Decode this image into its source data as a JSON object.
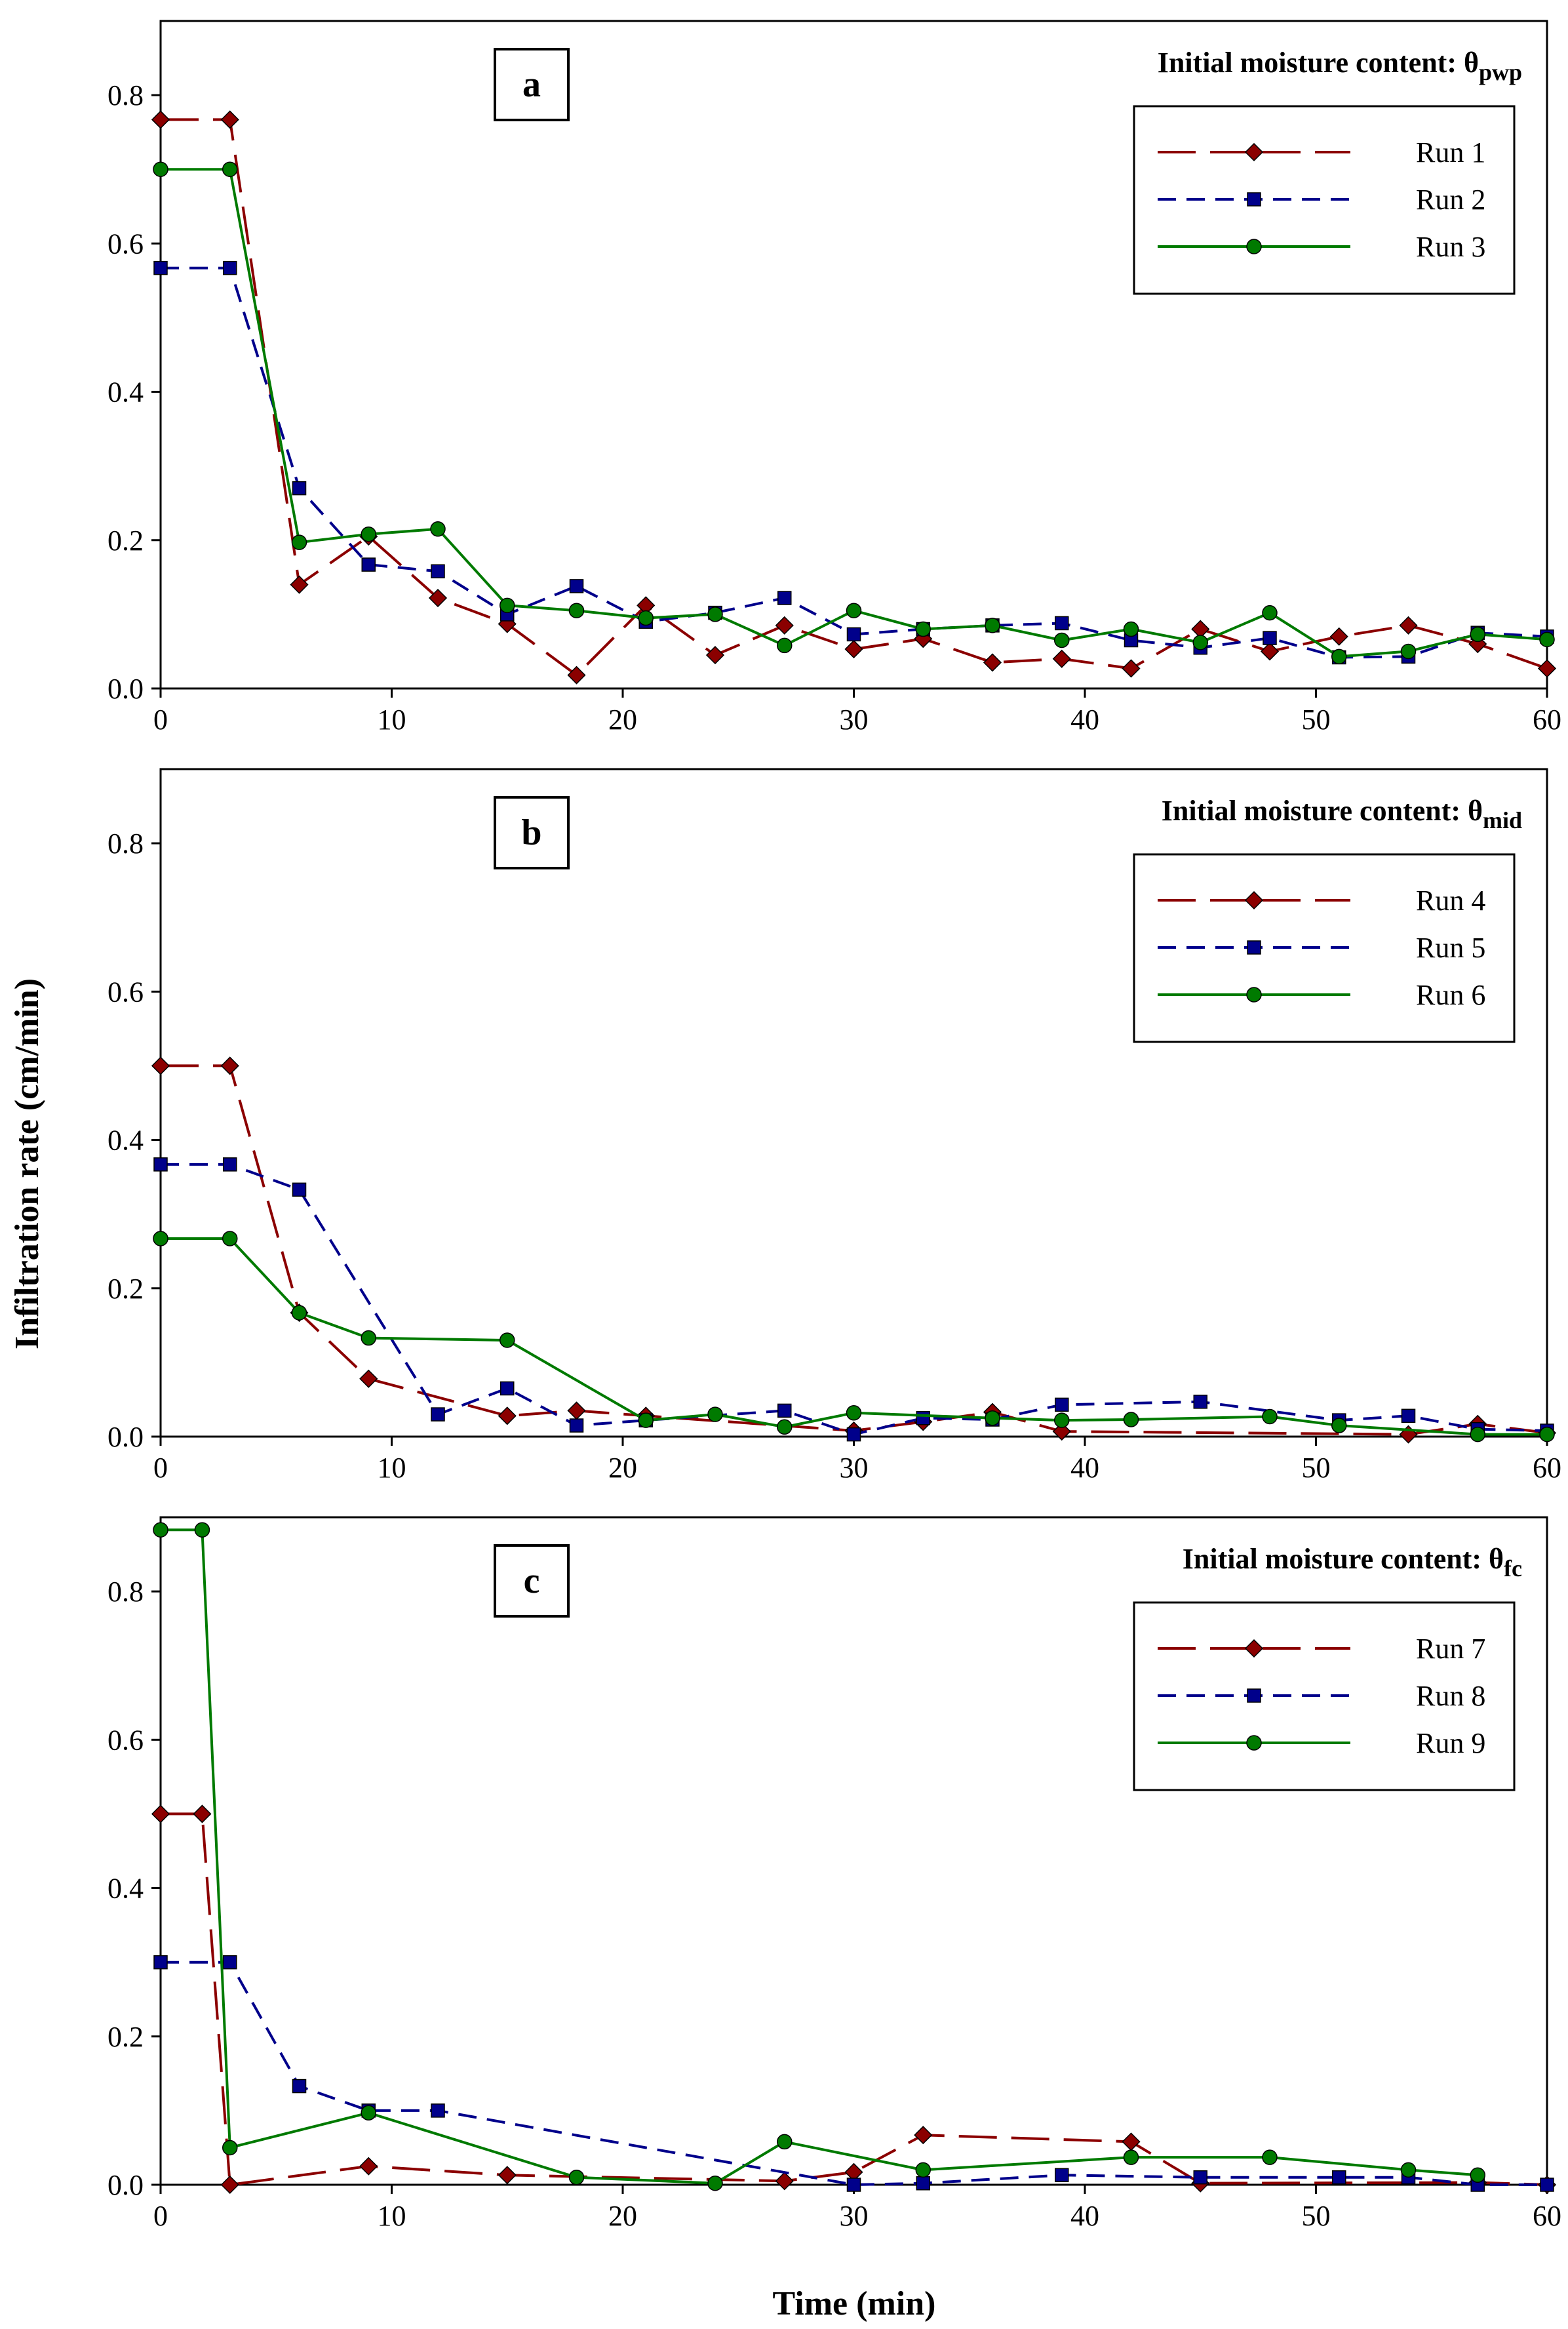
{
  "figure": {
    "ylabel": "Infiltration rate (cm/min)",
    "xlabel": "Time (min)"
  },
  "chart_data": [
    {
      "type": "line",
      "panel_label": "a",
      "annotation": {
        "text": "Initial moisture content: θ",
        "subscript": "pwp"
      },
      "xlim": [
        0,
        60
      ],
      "ylim": [
        0,
        0.9
      ],
      "xticks": [
        0,
        10,
        20,
        30,
        40,
        50,
        60
      ],
      "yticks": [
        0.0,
        0.2,
        0.4,
        0.6,
        0.8
      ],
      "legend_position": "top-right",
      "series": [
        {
          "name": "Run 1",
          "color": "#8b0000",
          "dash": "long-dash",
          "marker": "diamond",
          "x": [
            0,
            3,
            6,
            9,
            12,
            15,
            18,
            21,
            24,
            27,
            30,
            33,
            36,
            39,
            42,
            45,
            48,
            51,
            54,
            57,
            60
          ],
          "y": [
            0.767,
            0.767,
            0.14,
            0.205,
            0.122,
            0.087,
            0.018,
            0.112,
            0.045,
            0.085,
            0.053,
            0.067,
            0.035,
            0.04,
            0.027,
            0.08,
            0.05,
            0.07,
            0.085,
            0.06,
            0.027
          ]
        },
        {
          "name": "Run 2",
          "color": "#00008b",
          "dash": "dash",
          "marker": "square",
          "x": [
            0,
            3,
            6,
            9,
            12,
            15,
            18,
            21,
            24,
            27,
            30,
            33,
            36,
            39,
            42,
            45,
            48,
            51,
            54,
            57,
            60
          ],
          "y": [
            0.567,
            0.567,
            0.27,
            0.167,
            0.158,
            0.1,
            0.138,
            0.09,
            0.102,
            0.122,
            0.073,
            0.08,
            0.085,
            0.088,
            0.065,
            0.055,
            0.068,
            0.042,
            0.043,
            0.075,
            0.07
          ]
        },
        {
          "name": "Run 3",
          "color": "#007a00",
          "dash": "solid",
          "marker": "circle",
          "x": [
            0,
            3,
            6,
            9,
            12,
            15,
            18,
            21,
            24,
            27,
            30,
            33,
            36,
            39,
            42,
            45,
            48,
            51,
            54,
            57,
            60
          ],
          "y": [
            0.7,
            0.7,
            0.197,
            0.208,
            0.215,
            0.112,
            0.105,
            0.095,
            0.1,
            0.058,
            0.105,
            0.08,
            0.085,
            0.065,
            0.08,
            0.062,
            0.102,
            0.043,
            0.05,
            0.073,
            0.066
          ]
        }
      ]
    },
    {
      "type": "line",
      "panel_label": "b",
      "annotation": {
        "text": "Initial moisture content: θ",
        "subscript": "mid"
      },
      "xlim": [
        0,
        60
      ],
      "ylim": [
        0,
        0.9
      ],
      "xticks": [
        0,
        10,
        20,
        30,
        40,
        50,
        60
      ],
      "yticks": [
        0.0,
        0.2,
        0.4,
        0.6,
        0.8
      ],
      "legend_position": "top-right",
      "series": [
        {
          "name": "Run 4",
          "color": "#8b0000",
          "dash": "long-dash",
          "marker": "diamond",
          "x": [
            0,
            3,
            6,
            9,
            15,
            18,
            21,
            30,
            33,
            36,
            39,
            54,
            57,
            60
          ],
          "y": [
            0.5,
            0.5,
            0.167,
            0.078,
            0.028,
            0.035,
            0.028,
            0.008,
            0.02,
            0.033,
            0.007,
            0.003,
            0.017,
            0.005
          ]
        },
        {
          "name": "Run 5",
          "color": "#00008b",
          "dash": "dash",
          "marker": "square",
          "x": [
            0,
            3,
            6,
            12,
            15,
            18,
            21,
            27,
            30,
            33,
            36,
            39,
            45,
            51,
            54,
            57,
            60
          ],
          "y": [
            0.367,
            0.367,
            0.333,
            0.03,
            0.065,
            0.015,
            0.022,
            0.035,
            0.003,
            0.025,
            0.023,
            0.043,
            0.047,
            0.022,
            0.028,
            0.01,
            0.008
          ]
        },
        {
          "name": "Run 6",
          "color": "#007a00",
          "dash": "solid",
          "marker": "circle",
          "x": [
            0,
            3,
            6,
            9,
            15,
            21,
            24,
            27,
            30,
            36,
            39,
            42,
            48,
            51,
            57,
            60
          ],
          "y": [
            0.267,
            0.267,
            0.167,
            0.133,
            0.13,
            0.022,
            0.03,
            0.013,
            0.032,
            0.025,
            0.022,
            0.023,
            0.027,
            0.015,
            0.003,
            0.003
          ]
        }
      ]
    },
    {
      "type": "line",
      "panel_label": "c",
      "annotation": {
        "text": "Initial moisture content: θ",
        "subscript": "fc"
      },
      "xlim": [
        0,
        60
      ],
      "ylim": [
        0,
        0.9
      ],
      "xticks": [
        0,
        10,
        20,
        30,
        40,
        50,
        60
      ],
      "yticks": [
        0.0,
        0.2,
        0.4,
        0.6,
        0.8
      ],
      "legend_position": "top-right",
      "series": [
        {
          "name": "Run 7",
          "color": "#8b0000",
          "dash": "long-dash",
          "marker": "diamond",
          "x": [
            0,
            1.8,
            3,
            9,
            15,
            27,
            30,
            33,
            42,
            45,
            57,
            60
          ],
          "y": [
            0.5,
            0.5,
            0.0,
            0.025,
            0.013,
            0.005,
            0.017,
            0.067,
            0.058,
            0.002,
            0.003,
            0.0
          ]
        },
        {
          "name": "Run 8",
          "color": "#00008b",
          "dash": "dash",
          "marker": "square",
          "x": [
            0,
            3,
            6,
            9,
            12,
            30,
            33,
            39,
            45,
            51,
            54,
            57,
            60
          ],
          "y": [
            0.3,
            0.3,
            0.133,
            0.1,
            0.1,
            0.0,
            0.002,
            0.013,
            0.01,
            0.01,
            0.01,
            0.0,
            0.0
          ]
        },
        {
          "name": "Run 9",
          "color": "#007a00",
          "dash": "solid",
          "marker": "circle",
          "x": [
            0,
            1.8,
            3,
            9,
            18,
            24,
            27,
            33,
            42,
            48,
            54,
            57
          ],
          "y": [
            0.883,
            0.883,
            0.05,
            0.097,
            0.01,
            0.002,
            0.058,
            0.02,
            0.037,
            0.037,
            0.02,
            0.013
          ]
        }
      ]
    }
  ]
}
